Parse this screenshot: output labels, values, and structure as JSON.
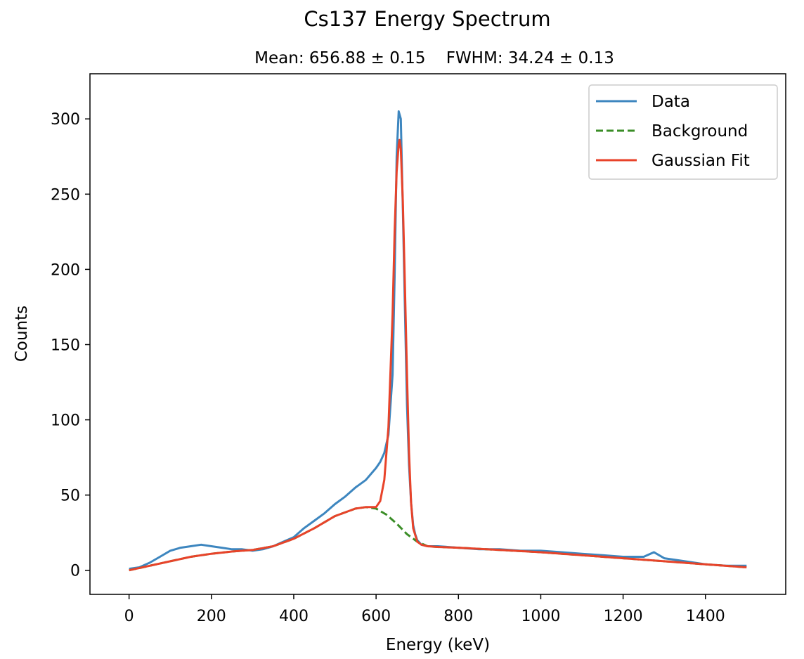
{
  "chart_data": {
    "type": "line",
    "title": "Cs137 Energy Spectrum",
    "subtitle": "Mean: 656.88 ± 0.15    FWHM: 34.24 ± 0.13",
    "xlabel": "Energy (keV)",
    "ylabel": "Counts",
    "xlim": [
      -95,
      1595
    ],
    "ylim": [
      -16,
      330
    ],
    "xticks": [
      0,
      200,
      400,
      600,
      800,
      1000,
      1200,
      1400
    ],
    "yticks": [
      0,
      50,
      100,
      150,
      200,
      250,
      300
    ],
    "grid": false,
    "legend_position": "top-right",
    "legend": [
      "Data",
      "Background",
      "Gaussian Fit"
    ],
    "colors": {
      "data": "#3d86bf",
      "background": "#3a8d26",
      "fit": "#e8432a"
    },
    "series": [
      {
        "name": "Data",
        "style": "solid",
        "x": [
          0,
          25,
          50,
          75,
          100,
          125,
          150,
          175,
          200,
          225,
          250,
          275,
          300,
          325,
          350,
          375,
          400,
          425,
          450,
          475,
          500,
          525,
          550,
          575,
          600,
          610,
          620,
          630,
          640,
          645,
          650,
          655,
          660,
          665,
          670,
          675,
          680,
          685,
          690,
          695,
          700,
          710,
          725,
          750,
          800,
          850,
          900,
          950,
          1000,
          1050,
          1100,
          1150,
          1200,
          1250,
          1275,
          1300,
          1350,
          1400,
          1450,
          1500
        ],
        "y": [
          1,
          2,
          5,
          9,
          13,
          15,
          16,
          17,
          16,
          15,
          14,
          14,
          13,
          14,
          16,
          19,
          22,
          28,
          33,
          38,
          44,
          49,
          55,
          60,
          68,
          72,
          78,
          90,
          130,
          195,
          275,
          305,
          300,
          240,
          175,
          110,
          70,
          45,
          30,
          24,
          20,
          17,
          16,
          16,
          15,
          14,
          14,
          13,
          13,
          12,
          11,
          10,
          9,
          9,
          12,
          8,
          6,
          4,
          3,
          3
        ]
      },
      {
        "name": "Background",
        "style": "dashed",
        "x": [
          0,
          50,
          100,
          150,
          200,
          250,
          300,
          350,
          400,
          450,
          500,
          550,
          575,
          600,
          625,
          650,
          675,
          700,
          725,
          750,
          800,
          900,
          1000,
          1100,
          1200,
          1300,
          1400,
          1500
        ],
        "y": [
          0,
          3,
          6,
          9,
          11,
          12.5,
          13.5,
          16,
          21,
          28,
          36,
          41,
          42,
          41,
          37,
          31,
          24,
          19,
          16,
          15.5,
          15,
          13.5,
          12,
          10,
          8,
          6,
          4,
          2
        ]
      },
      {
        "name": "Gaussian Fit",
        "style": "solid",
        "x": [
          0,
          50,
          100,
          150,
          200,
          250,
          300,
          350,
          400,
          450,
          500,
          550,
          575,
          600,
          610,
          620,
          630,
          640,
          645,
          650,
          655,
          657,
          660,
          665,
          670,
          675,
          680,
          685,
          690,
          700,
          710,
          725,
          750,
          800,
          900,
          1000,
          1100,
          1200,
          1300,
          1400,
          1500
        ],
        "y": [
          0,
          3,
          6,
          9,
          11,
          12.5,
          13.5,
          16,
          21,
          28,
          36,
          41,
          42,
          42,
          46,
          60,
          95,
          170,
          225,
          265,
          283,
          286,
          280,
          245,
          190,
          130,
          78,
          45,
          28,
          19,
          17,
          16,
          15.5,
          15,
          13.5,
          12,
          10,
          8,
          6,
          4,
          2
        ]
      }
    ]
  }
}
